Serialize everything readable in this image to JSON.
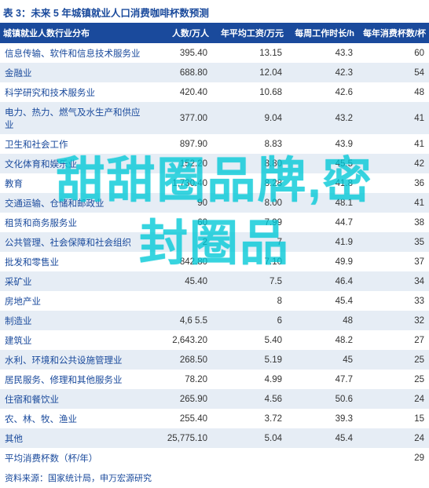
{
  "title": "表 3：未来 5 年城镇就业人口消费咖啡杯数预测",
  "columns": [
    "城镇就业人数行业分布",
    "人数/万人",
    "年平均工资/万元",
    "每周工作时长/h",
    "每年消费杯数/杯"
  ],
  "rows": [
    {
      "cat": "信息传输、软件和信息技术服务业",
      "n": "395.40",
      "w": "13.15",
      "h": "43.3",
      "c": "60"
    },
    {
      "cat": "金融业",
      "n": "688.80",
      "w": "12.04",
      "h": "42.3",
      "c": "54"
    },
    {
      "cat": "科学研究和技术服务业",
      "n": "420.40",
      "w": "10.68",
      "h": "42.6",
      "c": "48"
    },
    {
      "cat": "电力、热力、燃气及水生产和供应业",
      "n": "377.00",
      "w": "9.04",
      "h": "43.2",
      "c": "41"
    },
    {
      "cat": "卫生和社会工作",
      "n": "897.90",
      "w": "8.83",
      "h": "43.9",
      "c": "41"
    },
    {
      "cat": "文化体育和娱乐业",
      "n": "152.20",
      "w": "8.80",
      "h": "45.5",
      "c": "42"
    },
    {
      "cat": "教育",
      "n": "1,730.40",
      "w": "8.28",
      "h": "41.8",
      "c": "36"
    },
    {
      "cat": "交通运输、仓储和邮政业",
      "n": "90",
      "w": "8.00",
      "h": "48.1",
      "c": "41"
    },
    {
      "cat": "租赁和商务服务业",
      "n": "60",
      "w": "7.99",
      "h": "44.7",
      "c": "38"
    },
    {
      "cat": "公共管理、社会保障和社会组织",
      "n": "2",
      "w": "7",
      "h": "41.9",
      "c": "35"
    },
    {
      "cat": "批发和零售业",
      "n": "842.80",
      "w": "7.10",
      "h": "49.9",
      "c": "37"
    },
    {
      "cat": "采矿业",
      "n": "45.40",
      "w": "7.5",
      "h": "46.4",
      "c": "34"
    },
    {
      "cat": "房地产业",
      "n": "",
      "w": "8",
      "h": "45.4",
      "c": "33"
    },
    {
      "cat": "制造业",
      "n": "4,6 5.5",
      "w": "6",
      "h": "48",
      "c": "32"
    },
    {
      "cat": "建筑业",
      "n": "2,643.20",
      "w": "5.40",
      "h": "48.2",
      "c": "27"
    },
    {
      "cat": "水利、环境和公共设施管理业",
      "n": "268.50",
      "w": "5.19",
      "h": "45",
      "c": "25"
    },
    {
      "cat": "居民服务、修理和其他服务业",
      "n": "78.20",
      "w": "4.99",
      "h": "47.7",
      "c": "25"
    },
    {
      "cat": "住宿和餐饮业",
      "n": "265.90",
      "w": "4.56",
      "h": "50.6",
      "c": "24"
    },
    {
      "cat": "农、林、牧、渔业",
      "n": "255.40",
      "w": "3.72",
      "h": "39.3",
      "c": "15"
    },
    {
      "cat": "其他",
      "n": "25,775.10",
      "w": "5.04",
      "h": "45.4",
      "c": "24"
    },
    {
      "cat": "平均消费杯数（杯/年）",
      "n": "",
      "w": "",
      "h": "",
      "c": "29"
    }
  ],
  "footer": "资料来源：国家统计局，申万宏源研究",
  "watermark_line1": "甜甜圈品牌,密",
  "watermark_line2": "封圈品",
  "colors": {
    "header_bg": "#1a4a9c",
    "header_fg": "#ffffff",
    "zebra_bg": "#e6edf5",
    "title_color": "#1a4a9c",
    "watermark_color": "#00c8d7"
  },
  "zebra_rows": [
    1,
    3,
    5,
    7,
    9,
    11,
    13,
    15,
    17,
    19
  ]
}
